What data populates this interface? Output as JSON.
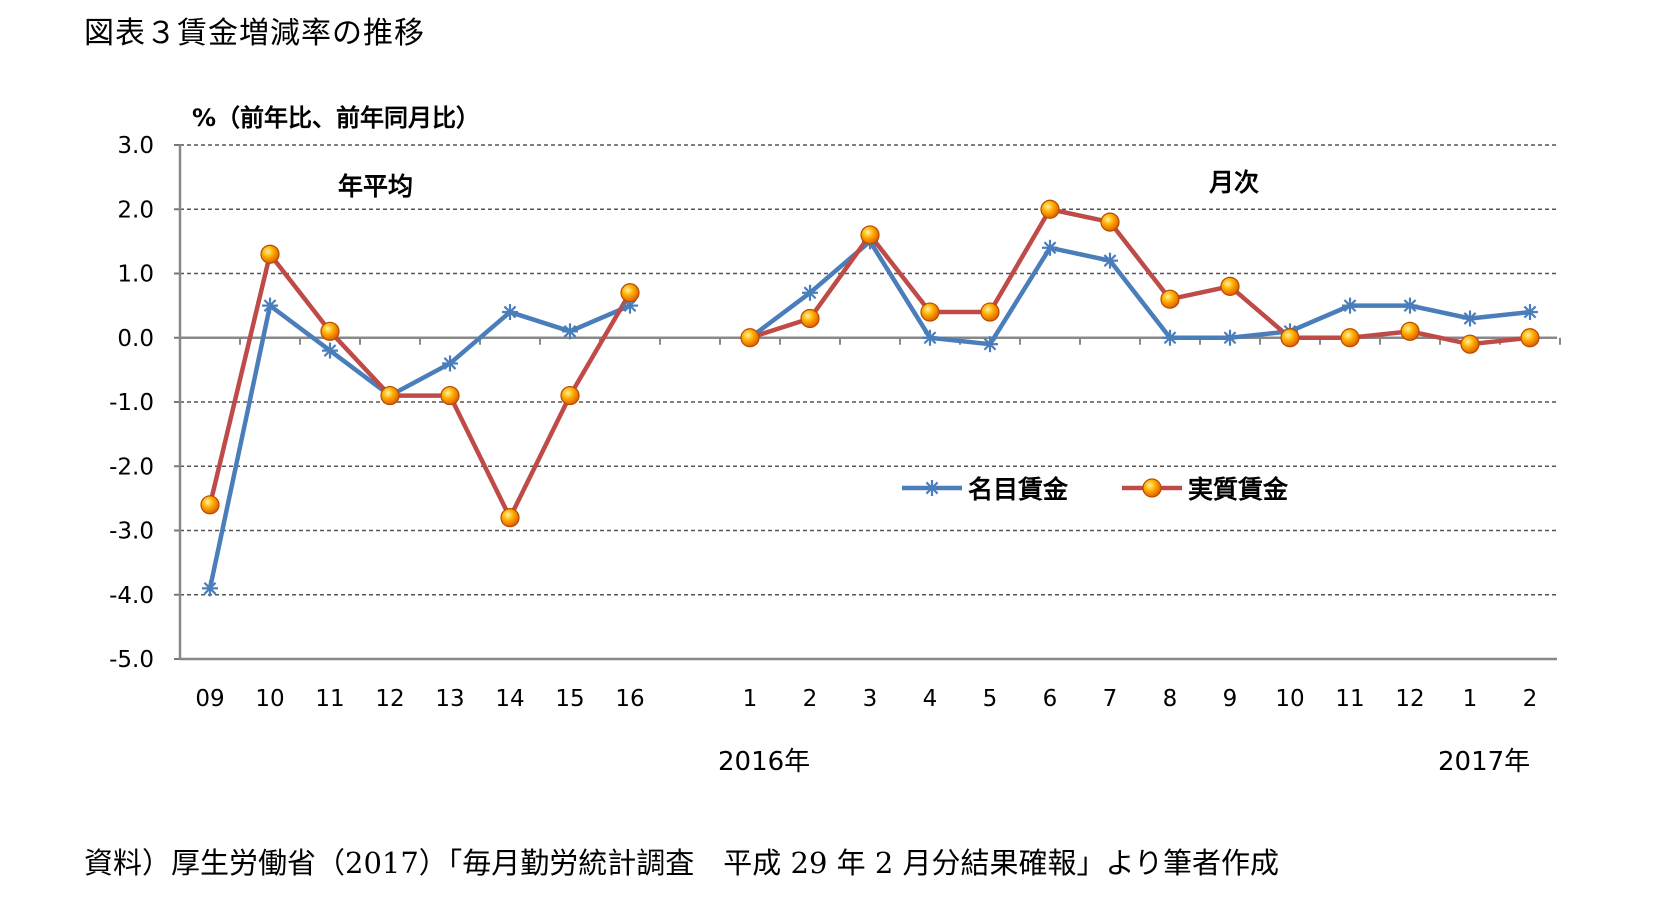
{
  "figure_title": "図表３賃金増減率の推移",
  "source_note": "資料）厚生労働省（2017）「毎月勤労統計調査　平成 29 年 2 月分結果確報」より筆者作成",
  "chart_data": {
    "type": "line",
    "ylabel": "%（前年比、前年同月比）",
    "ylim": [
      -5.0,
      3.0
    ],
    "yticks": [
      "3.0",
      "2.0",
      "1.0",
      "0.0",
      "-1.0",
      "-2.0",
      "-3.0",
      "-4.0",
      "-5.0"
    ],
    "grid": true,
    "legend_position": "center-right",
    "section_labels": {
      "annual": "年平均",
      "monthly": "月次"
    },
    "year_labels": {
      "y2016": "2016年",
      "y2017": "2017年"
    },
    "annual_categories": [
      "09",
      "10",
      "11",
      "12",
      "13",
      "14",
      "15",
      "16"
    ],
    "monthly_categories": [
      "1",
      "2",
      "3",
      "4",
      "5",
      "6",
      "7",
      "8",
      "9",
      "10",
      "11",
      "12",
      "1",
      "2"
    ],
    "series": [
      {
        "name": "名目賃金",
        "color": "#4A7EBB",
        "marker": "asterisk",
        "annual": [
          -3.9,
          0.5,
          -0.2,
          -0.9,
          -0.4,
          0.4,
          0.1,
          0.5
        ],
        "monthly": [
          0.0,
          0.7,
          1.5,
          0.0,
          -0.1,
          1.4,
          1.2,
          0.0,
          0.0,
          0.1,
          0.5,
          0.5,
          0.3,
          0.4
        ]
      },
      {
        "name": "実質賃金",
        "color": "#BE4B48",
        "marker": "circle",
        "annual": [
          -2.6,
          1.3,
          0.1,
          -0.9,
          -0.9,
          -2.8,
          -0.9,
          0.7
        ],
        "monthly": [
          0.0,
          0.3,
          1.6,
          0.4,
          0.4,
          2.0,
          1.8,
          0.6,
          0.8,
          0.0,
          0.0,
          0.1,
          -0.1,
          0.0
        ]
      }
    ]
  }
}
